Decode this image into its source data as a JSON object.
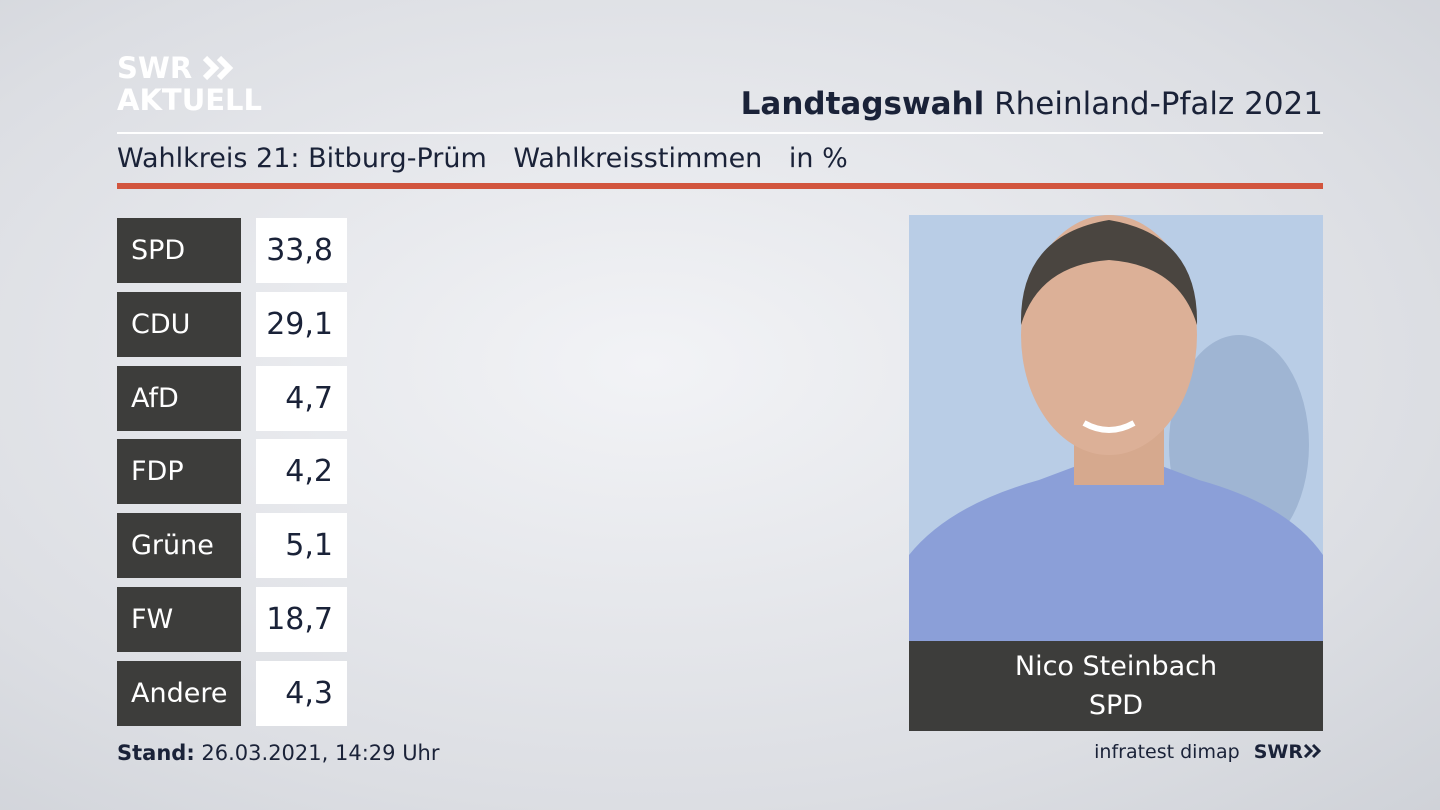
{
  "header": {
    "logo": {
      "line1": "SWR",
      "line2": "AKTUELL"
    },
    "title_bold": "Landtagswahl",
    "title": "Rheinland-Pfalz 2021"
  },
  "subheader": {
    "district": "Wahlkreis 21: Bitburg-Prüm",
    "vote_type": "Wahlkreisstimmen",
    "unit": "in %"
  },
  "table": {
    "rows": [
      [
        "SPD",
        "33,8"
      ],
      [
        "CDU",
        "29,1"
      ],
      [
        "AfD",
        "4,7"
      ],
      [
        "FDP",
        "4,2"
      ],
      [
        "Grüne",
        "5,1"
      ],
      [
        "FW",
        "18,7"
      ],
      [
        "Andere",
        "4,3"
      ]
    ]
  },
  "candidate": {
    "name": "Nico Steinbach",
    "party": "SPD"
  },
  "footer": {
    "stand_label": "Stand:",
    "timestamp": "26.03.2021, 14:29 Uhr",
    "source": "infratest dimap",
    "logo": "SWR"
  }
}
